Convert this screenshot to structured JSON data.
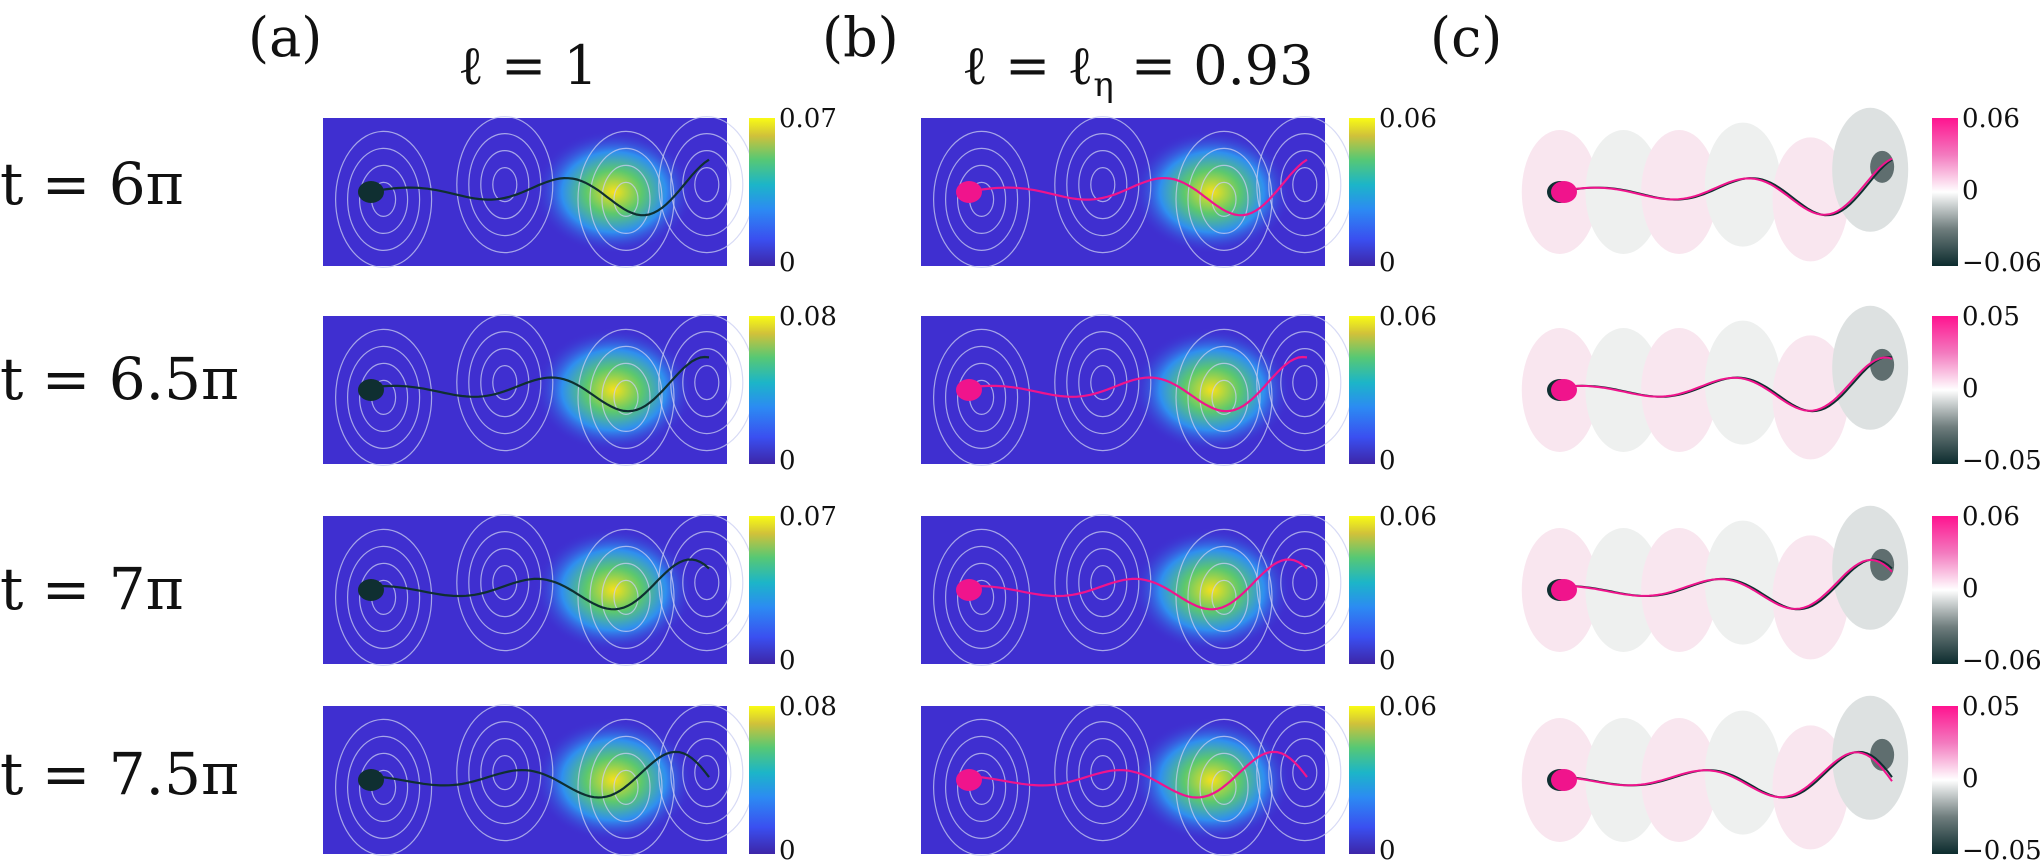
{
  "panels": [
    {
      "label": "(a)",
      "title": "ℓ = 1",
      "colorbar_type": "viridis-like"
    },
    {
      "label": "(b)",
      "title": "ℓ = ℓ",
      "title_sub": "η",
      "title_tail": " = 0.93",
      "colorbar_type": "viridis-like"
    },
    {
      "label": "(c)",
      "title": "",
      "colorbar_type": "diverging"
    }
  ],
  "rows": [
    {
      "time_label": "t = 6π",
      "a": {
        "cmax": "0.07",
        "cmin": "0"
      },
      "b": {
        "cmax": "0.06",
        "cmin": "0"
      },
      "c": {
        "cmax": "0.06",
        "cmid": "0",
        "cmin": "−0.06"
      }
    },
    {
      "time_label": "t = 6.5π",
      "a": {
        "cmax": "0.08",
        "cmin": "0"
      },
      "b": {
        "cmax": "0.06",
        "cmin": "0"
      },
      "c": {
        "cmax": "0.05",
        "cmid": "0",
        "cmin": "−0.05"
      }
    },
    {
      "time_label": "t = 7π",
      "a": {
        "cmax": "0.07",
        "cmin": "0"
      },
      "b": {
        "cmax": "0.06",
        "cmin": "0"
      },
      "c": {
        "cmax": "0.06",
        "cmid": "0",
        "cmin": "−0.06"
      }
    },
    {
      "time_label": "t = 7.5π",
      "a": {
        "cmax": "0.08",
        "cmin": "0"
      },
      "b": {
        "cmax": "0.06",
        "cmin": "0"
      },
      "c": {
        "cmax": "0.05",
        "cmid": "0",
        "cmin": "−0.05"
      }
    }
  ],
  "colors": {
    "field_base": "#3f2fd0",
    "streamline": "#c9cdf2",
    "filament_a": "#0f2f31",
    "filament_b": "#f0148c",
    "hotspot": "#f7e11a"
  }
}
